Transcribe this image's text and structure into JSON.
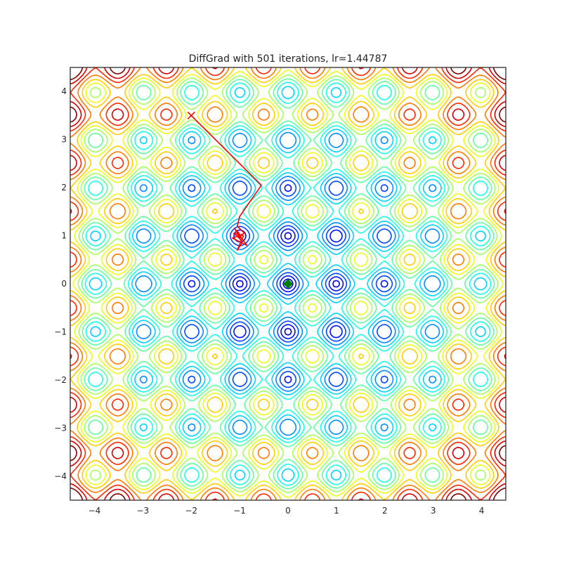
{
  "chart_data": {
    "type": "contour",
    "title": "DiffGrad with 501 iterations, lr=1.44787",
    "xlabel": "",
    "ylabel": "",
    "xlim": [
      -4.5,
      4.5
    ],
    "ylim": [
      -4.5,
      4.5
    ],
    "x_ticks": [
      -4,
      -3,
      -2,
      -1,
      0,
      1,
      2,
      3,
      4
    ],
    "y_ticks": [
      -4,
      -3,
      -2,
      -1,
      0,
      1,
      2,
      3,
      4
    ],
    "x_tick_labels": [
      "−4",
      "−3",
      "−2",
      "−1",
      "0",
      "1",
      "2",
      "3",
      "4"
    ],
    "y_tick_labels": [
      "−4",
      "−3",
      "−2",
      "−1",
      "0",
      "1",
      "2",
      "3",
      "4"
    ],
    "grid": false,
    "legend": "none",
    "surface": "Rastrigin function f(x,y) = 20 + x^2 - 10cos(2πx) + y^2 - 10cos(2πy)",
    "contour_levels": [
      2,
      5,
      9,
      14,
      19,
      24,
      29,
      34,
      39,
      44,
      50,
      56,
      62,
      68
    ],
    "colormap": "jet",
    "global_minimum": {
      "x": 0,
      "y": 0,
      "marker": "diamond",
      "color": "#008000"
    },
    "trajectory": {
      "color": "#ff0000",
      "start_marker": "x",
      "points": [
        [
          -2.0,
          3.5
        ],
        [
          -0.55,
          2.05
        ],
        [
          -1.0,
          1.4
        ],
        [
          -1.05,
          1.2
        ],
        [
          -0.9,
          1.05
        ],
        [
          -1.15,
          0.95
        ],
        [
          -0.85,
          0.8
        ],
        [
          -1.1,
          1.15
        ],
        [
          -0.95,
          0.85
        ],
        [
          -1.05,
          0.7
        ],
        [
          -0.92,
          1.0
        ],
        [
          -1.12,
          1.05
        ],
        [
          -0.98,
          0.92
        ],
        [
          -1.03,
          1.08
        ],
        [
          -0.97,
          0.97
        ],
        [
          -1.0,
          1.0
        ]
      ]
    }
  }
}
